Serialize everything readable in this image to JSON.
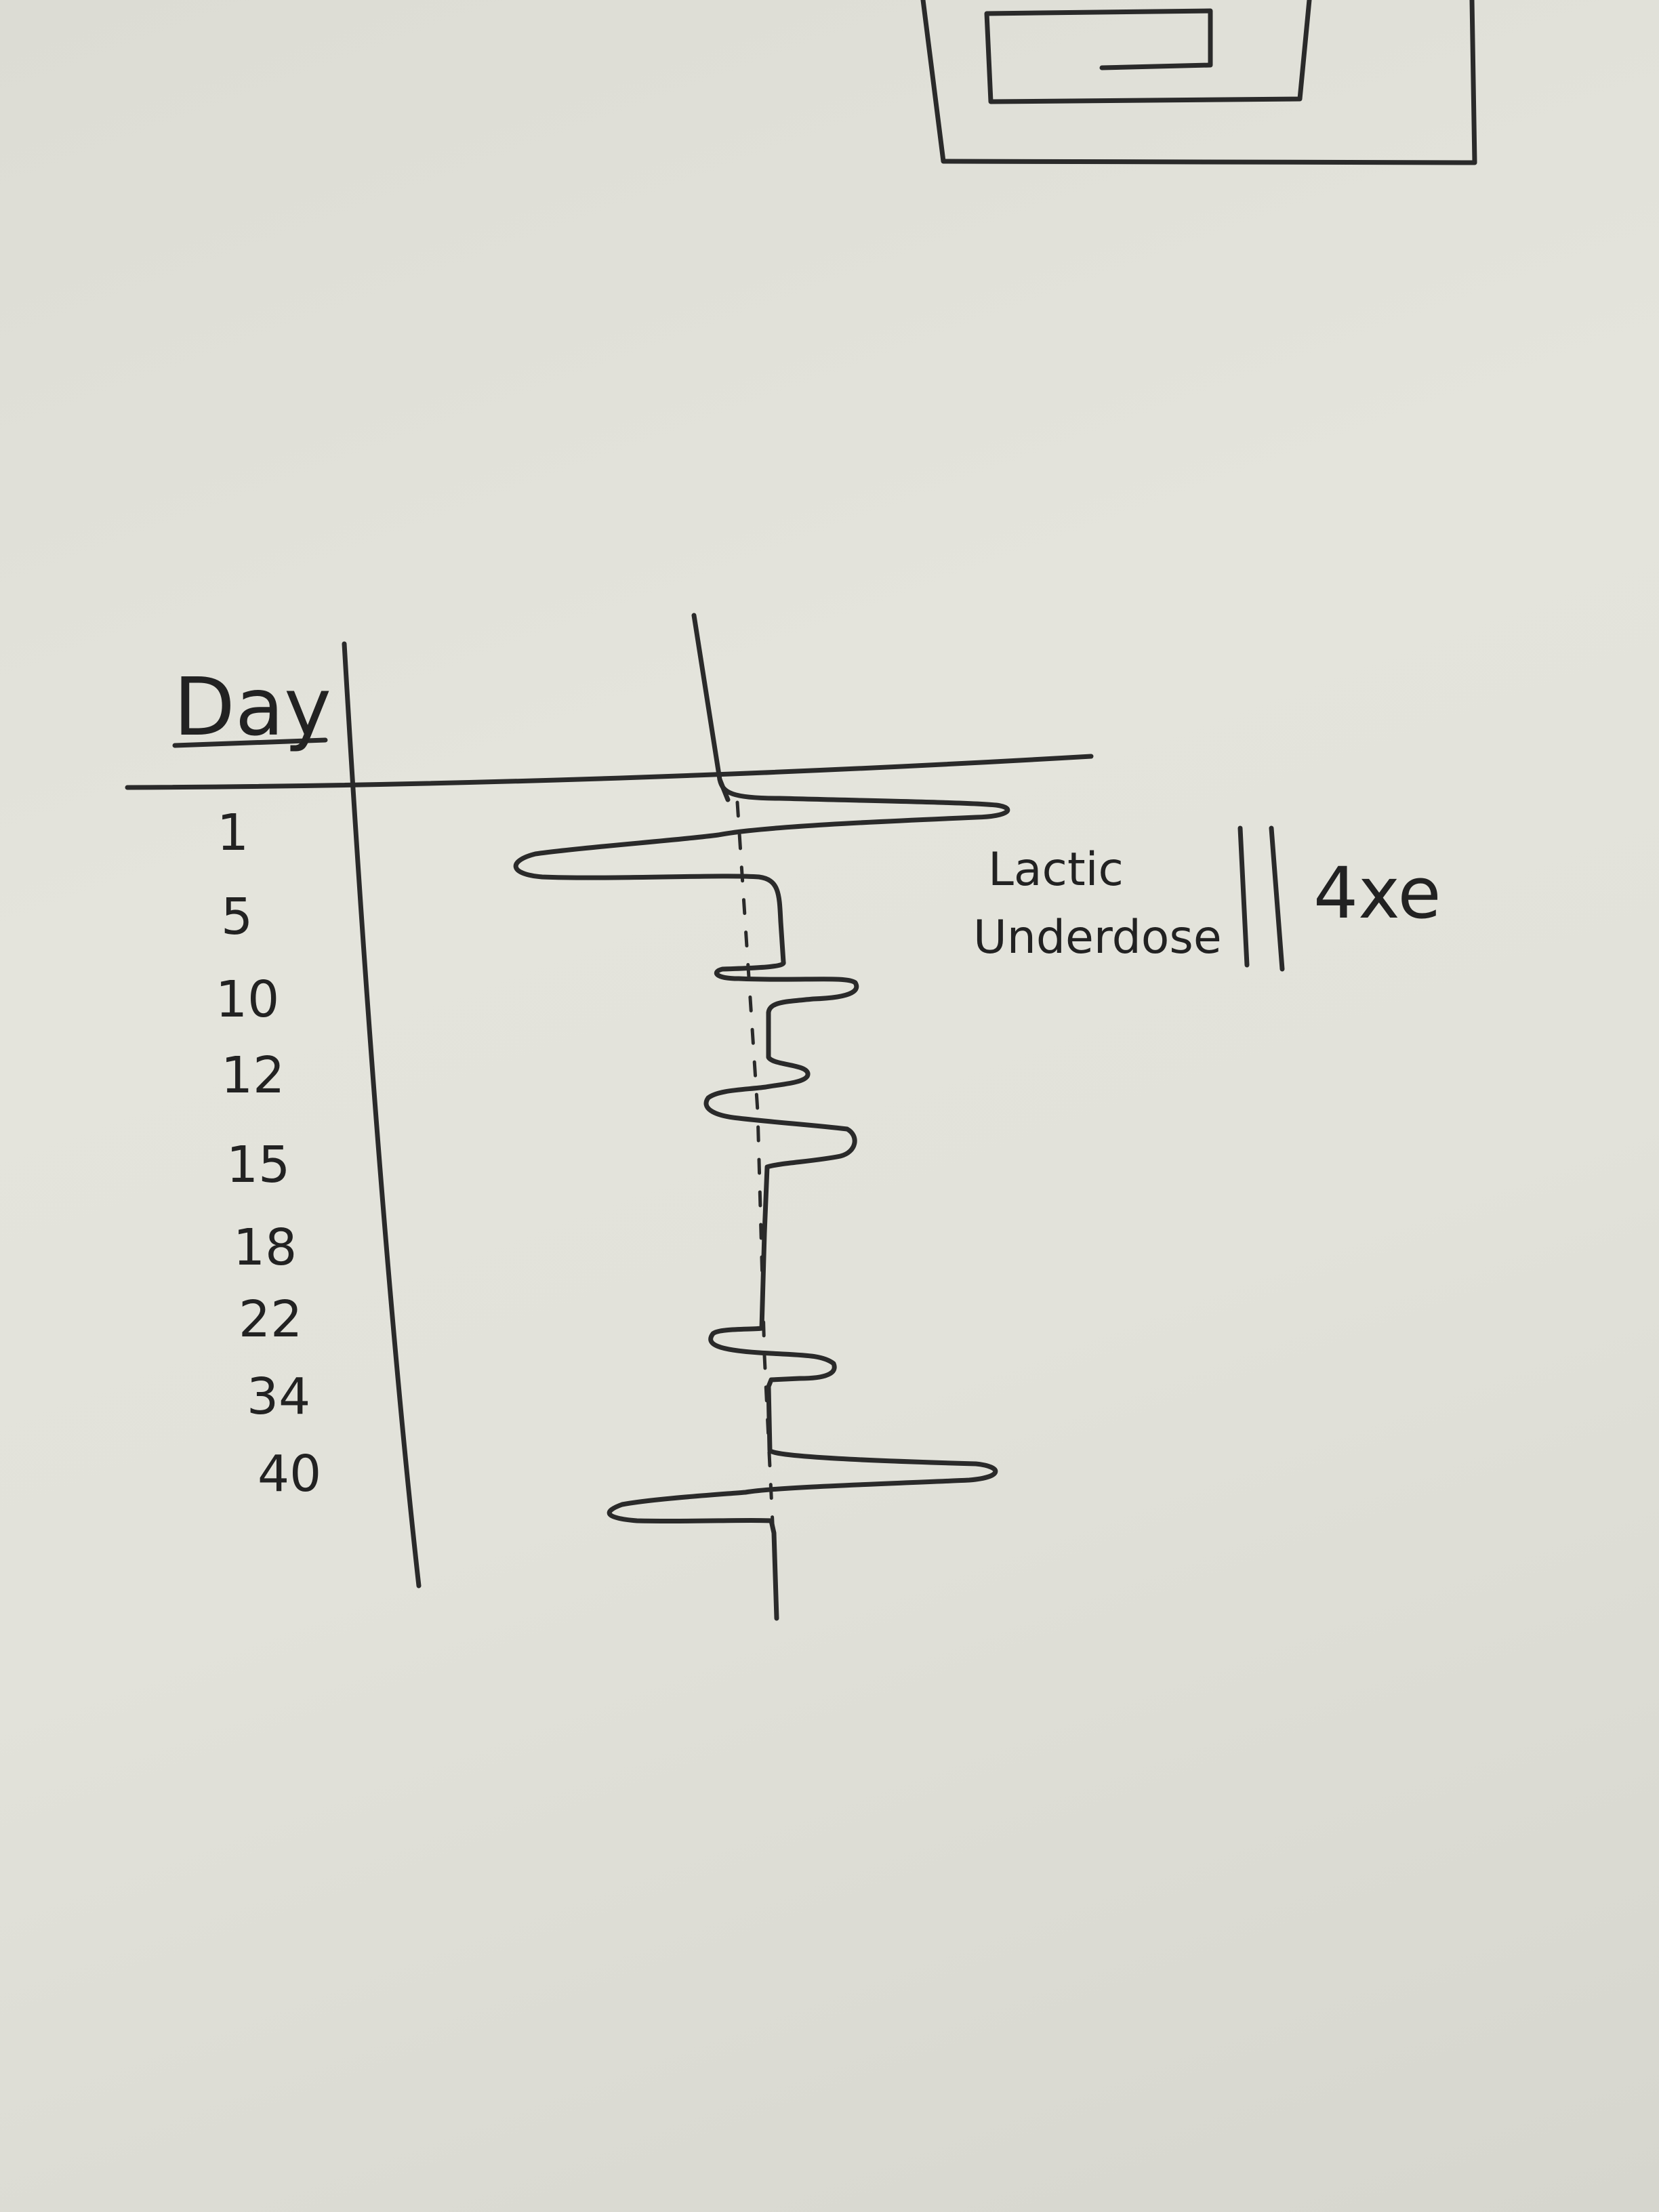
{
  "header_label": "Day",
  "days": [
    "1",
    "5",
    "10",
    "12",
    "15",
    "18",
    "22",
    "34",
    "40"
  ],
  "annotation": {
    "line1": "Lactic",
    "line2": "Underdose",
    "tag": "4xe"
  },
  "colors": {
    "paper": "#e2e2da",
    "ink": "#2a2a2a"
  }
}
